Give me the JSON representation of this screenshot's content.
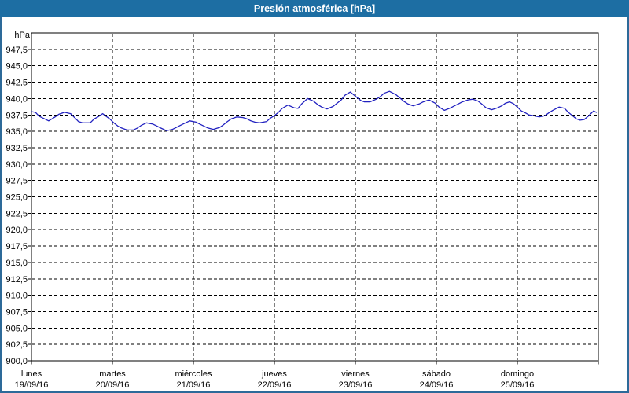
{
  "window": {
    "title": "Presión atmosférica [hPa]"
  },
  "colors": {
    "titlebar_bg": "#1d6ea3",
    "window_border": "#2d6a99",
    "title_text": "#ffffff",
    "plot_frame": "#000000",
    "grid": "#000000",
    "text": "#000000",
    "line": "#2222c0",
    "background": "#ffffff"
  },
  "chart_data": {
    "type": "line",
    "title": "Presión atmosférica [hPa]",
    "ylabel": "hPa",
    "ylim": [
      900,
      950
    ],
    "ytick_step": 2.5,
    "decimal_separator": ",",
    "grid": "dashed",
    "legend": "none",
    "x_axis": {
      "unit": "days",
      "span_hours": 168,
      "days": [
        {
          "name": "lunes",
          "date": "19/09/16"
        },
        {
          "name": "martes",
          "date": "20/09/16"
        },
        {
          "name": "miércoles",
          "date": "21/09/16"
        },
        {
          "name": "jueves",
          "date": "22/09/16"
        },
        {
          "name": "viernes",
          "date": "23/09/16"
        },
        {
          "name": "sábado",
          "date": "24/09/16"
        },
        {
          "name": "domingo",
          "date": "25/09/16"
        }
      ]
    },
    "series": [
      {
        "name": "Presión atmosférica [hPa]",
        "color": "#2222c0",
        "points_hour_hpa": [
          [
            0.0,
            938.0
          ],
          [
            1.2,
            937.9
          ],
          [
            2.3,
            937.3
          ],
          [
            3.5,
            937.0
          ],
          [
            5.1,
            936.6
          ],
          [
            7.0,
            937.2
          ],
          [
            8.1,
            937.6
          ],
          [
            9.8,
            937.9
          ],
          [
            11.6,
            937.7
          ],
          [
            12.8,
            937.1
          ],
          [
            13.9,
            936.5
          ],
          [
            15.1,
            936.3
          ],
          [
            17.4,
            936.3
          ],
          [
            18.6,
            936.9
          ],
          [
            19.7,
            937.2
          ],
          [
            21.1,
            937.7
          ],
          [
            22.1,
            937.3
          ],
          [
            23.2,
            936.9
          ],
          [
            24.4,
            936.3
          ],
          [
            25.6,
            935.8
          ],
          [
            26.7,
            935.5
          ],
          [
            28.3,
            935.2
          ],
          [
            30.2,
            935.2
          ],
          [
            31.4,
            935.5
          ],
          [
            32.5,
            935.9
          ],
          [
            34.1,
            936.3
          ],
          [
            36.0,
            936.1
          ],
          [
            37.2,
            935.8
          ],
          [
            38.3,
            935.5
          ],
          [
            40.0,
            935.1
          ],
          [
            41.8,
            935.3
          ],
          [
            43.0,
            935.6
          ],
          [
            44.1,
            935.9
          ],
          [
            45.3,
            936.2
          ],
          [
            46.9,
            936.6
          ],
          [
            48.8,
            936.4
          ],
          [
            49.9,
            936.1
          ],
          [
            51.1,
            935.8
          ],
          [
            52.3,
            935.5
          ],
          [
            53.9,
            935.3
          ],
          [
            55.8,
            935.6
          ],
          [
            56.9,
            936.0
          ],
          [
            58.1,
            936.5
          ],
          [
            59.2,
            936.9
          ],
          [
            60.9,
            937.2
          ],
          [
            62.7,
            937.1
          ],
          [
            63.9,
            936.9
          ],
          [
            65.0,
            936.6
          ],
          [
            66.2,
            936.4
          ],
          [
            67.6,
            936.3
          ],
          [
            69.7,
            936.5
          ],
          [
            70.8,
            937.0
          ],
          [
            72.0,
            937.4
          ],
          [
            73.2,
            937.9
          ],
          [
            74.3,
            938.5
          ],
          [
            76.0,
            939.0
          ],
          [
            77.8,
            938.6
          ],
          [
            79.0,
            938.5
          ],
          [
            80.1,
            939.2
          ],
          [
            81.8,
            940.0
          ],
          [
            83.6,
            939.6
          ],
          [
            84.8,
            939.1
          ],
          [
            86.0,
            938.7
          ],
          [
            87.6,
            938.4
          ],
          [
            89.4,
            938.8
          ],
          [
            90.6,
            939.3
          ],
          [
            91.8,
            939.8
          ],
          [
            92.9,
            940.5
          ],
          [
            94.5,
            941.0
          ],
          [
            96.4,
            940.2
          ],
          [
            97.6,
            939.7
          ],
          [
            98.7,
            939.5
          ],
          [
            100.3,
            939.5
          ],
          [
            102.2,
            939.9
          ],
          [
            103.4,
            940.3
          ],
          [
            104.5,
            940.8
          ],
          [
            106.1,
            941.1
          ],
          [
            108.0,
            940.6
          ],
          [
            109.2,
            940.1
          ],
          [
            110.3,
            939.6
          ],
          [
            111.5,
            939.2
          ],
          [
            113.1,
            938.9
          ],
          [
            115.0,
            939.2
          ],
          [
            116.1,
            939.5
          ],
          [
            117.8,
            939.8
          ],
          [
            119.6,
            939.3
          ],
          [
            120.8,
            938.7
          ],
          [
            122.4,
            938.2
          ],
          [
            124.3,
            938.6
          ],
          [
            125.4,
            938.9
          ],
          [
            126.6,
            939.2
          ],
          [
            127.7,
            939.5
          ],
          [
            129.4,
            939.8
          ],
          [
            130.8,
            939.9
          ],
          [
            132.4,
            939.6
          ],
          [
            133.6,
            939.1
          ],
          [
            134.7,
            938.6
          ],
          [
            136.4,
            938.3
          ],
          [
            138.2,
            938.6
          ],
          [
            139.4,
            938.9
          ],
          [
            140.5,
            939.3
          ],
          [
            141.7,
            939.5
          ],
          [
            142.9,
            939.2
          ],
          [
            144.0,
            938.7
          ],
          [
            145.2,
            938.1
          ],
          [
            146.4,
            937.8
          ],
          [
            147.5,
            937.5
          ],
          [
            148.7,
            937.4
          ],
          [
            150.5,
            937.2
          ],
          [
            152.2,
            937.4
          ],
          [
            153.3,
            937.8
          ],
          [
            154.5,
            938.2
          ],
          [
            156.4,
            938.7
          ],
          [
            158.0,
            938.5
          ],
          [
            159.1,
            937.9
          ],
          [
            160.3,
            937.4
          ],
          [
            161.5,
            936.9
          ],
          [
            162.6,
            936.7
          ],
          [
            163.8,
            936.8
          ],
          [
            165.0,
            937.3
          ],
          [
            166.6,
            938.1
          ],
          [
            167.4,
            937.9
          ]
        ]
      }
    ]
  }
}
